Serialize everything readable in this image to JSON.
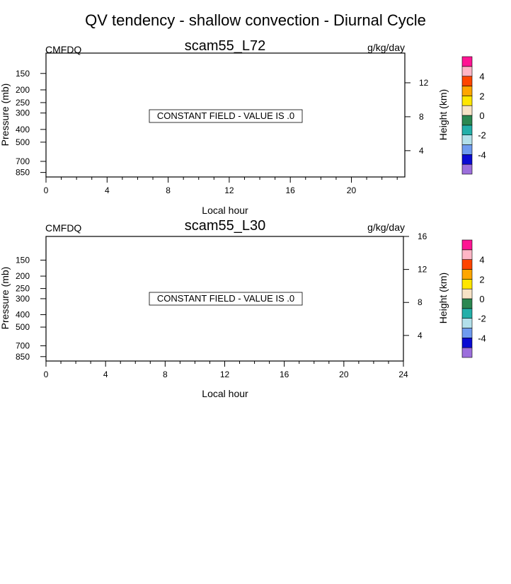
{
  "figure_title": "QV tendency - shallow convection - Diurnal Cycle",
  "colorbar": {
    "colors": [
      "#9c6fdc",
      "#0a0ad2",
      "#6f9bef",
      "#b2e0ea",
      "#23afa9",
      "#2b8751",
      "#f7e3c6",
      "#ffe600",
      "#ffa600",
      "#ff4500",
      "#ffb6c6",
      "#ff1493"
    ],
    "labels": [
      "-4",
      "-2",
      "0",
      "2",
      "4"
    ]
  },
  "chart_data": [
    {
      "type": "heatmap",
      "title": "scam55_L72",
      "left_string": "CMFDQ",
      "right_string": "g/kg/day",
      "xlabel": "Local hour",
      "ylabel": "Pressure (mb)",
      "ylabel_right": "Height (km)",
      "xlim": [
        0,
        23.5
      ],
      "xticks": [
        0,
        4,
        8,
        12,
        16,
        20
      ],
      "yticks": [
        150,
        200,
        250,
        300,
        400,
        500,
        700,
        850
      ],
      "ylim": [
        105,
        920
      ],
      "log_y": true,
      "right_ticks_km": [
        4,
        8,
        12
      ],
      "annotation": "CONSTANT FIELD - VALUE IS .0",
      "values_constant": 0.0
    },
    {
      "type": "heatmap",
      "title": "scam55_L30",
      "left_string": "CMFDQ",
      "right_string": "g/kg/day",
      "xlabel": "Local hour",
      "ylabel": "Pressure (mb)",
      "ylabel_right": "Height (km)",
      "xlim": [
        0,
        24
      ],
      "xticks": [
        0,
        4,
        8,
        12,
        16,
        20,
        24
      ],
      "yticks": [
        150,
        200,
        250,
        300,
        400,
        500,
        700,
        850
      ],
      "ylim": [
        98,
        920
      ],
      "log_y": true,
      "right_ticks_km": [
        4,
        8,
        12,
        16
      ],
      "annotation": "CONSTANT FIELD - VALUE IS .0",
      "values_constant": 0.0
    }
  ]
}
